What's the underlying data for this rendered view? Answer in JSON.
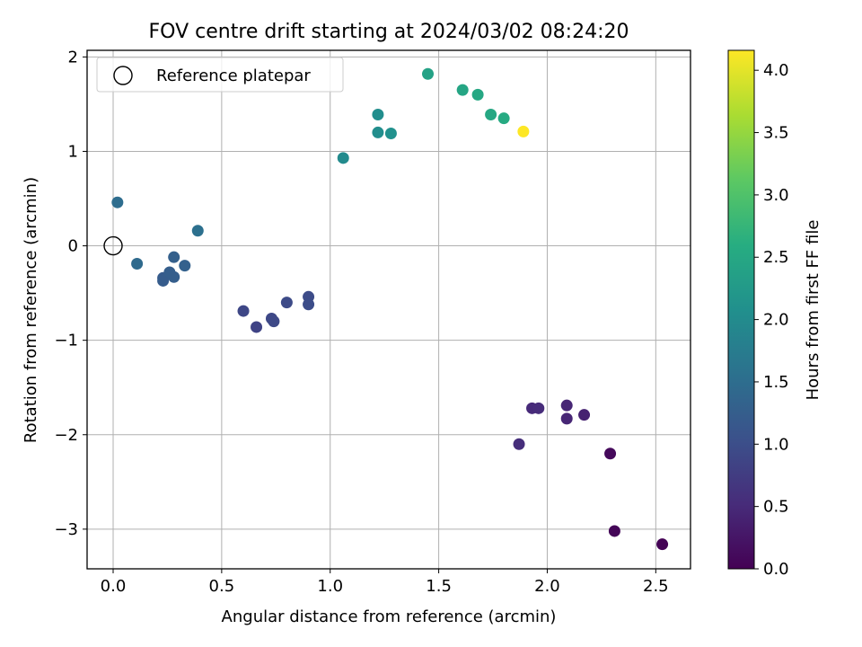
{
  "chart_data": {
    "type": "scatter",
    "title": "FOV centre drift starting at 2024/03/02 08:24:20",
    "xlabel": "Angular distance from reference (arcmin)",
    "ylabel": "Rotation from reference (arcmin)",
    "colorbar_label": "Hours from first FF file",
    "colormap": "viridis",
    "xlim": [
      -0.12,
      2.66
    ],
    "ylim": [
      -3.42,
      2.07
    ],
    "clim": [
      0.0,
      4.16
    ],
    "xticks": [
      "0.0",
      "0.5",
      "1.0",
      "1.5",
      "2.0",
      "2.5"
    ],
    "yticks": [
      "−3",
      "−2",
      "−1",
      "0",
      "1",
      "2"
    ],
    "cticks": [
      "0.0",
      "0.5",
      "1.0",
      "1.5",
      "2.0",
      "2.5",
      "3.0",
      "3.5",
      "4.0"
    ],
    "grid": true,
    "legend": {
      "placement": "upper-left",
      "entries": [
        "Reference platepar"
      ]
    },
    "reference_point": {
      "x": 0.0,
      "y": 0.0
    },
    "points": [
      {
        "x": 2.53,
        "y": -3.16,
        "h": 0.02
      },
      {
        "x": 2.31,
        "y": -3.02,
        "h": 0.06
      },
      {
        "x": 2.29,
        "y": -2.2,
        "h": 0.1
      },
      {
        "x": 2.17,
        "y": -1.79,
        "h": 0.4
      },
      {
        "x": 2.09,
        "y": -1.69,
        "h": 0.45
      },
      {
        "x": 2.09,
        "y": -1.83,
        "h": 0.45
      },
      {
        "x": 1.93,
        "y": -1.72,
        "h": 0.5
      },
      {
        "x": 1.96,
        "y": -1.72,
        "h": 0.52
      },
      {
        "x": 1.87,
        "y": -2.1,
        "h": 0.55
      },
      {
        "x": 0.66,
        "y": -0.86,
        "h": 0.85
      },
      {
        "x": 0.6,
        "y": -0.69,
        "h": 0.9
      },
      {
        "x": 0.73,
        "y": -0.77,
        "h": 0.92
      },
      {
        "x": 0.74,
        "y": -0.8,
        "h": 0.93
      },
      {
        "x": 0.8,
        "y": -0.6,
        "h": 0.95
      },
      {
        "x": 0.9,
        "y": -0.54,
        "h": 0.97
      },
      {
        "x": 0.9,
        "y": -0.62,
        "h": 0.98
      },
      {
        "x": 0.23,
        "y": -0.34,
        "h": 1.2
      },
      {
        "x": 0.23,
        "y": -0.37,
        "h": 1.22
      },
      {
        "x": 0.26,
        "y": -0.28,
        "h": 1.25
      },
      {
        "x": 0.28,
        "y": -0.33,
        "h": 1.25
      },
      {
        "x": 0.28,
        "y": -0.12,
        "h": 1.28
      },
      {
        "x": 0.33,
        "y": -0.21,
        "h": 1.3
      },
      {
        "x": 0.11,
        "y": -0.19,
        "h": 1.45
      },
      {
        "x": 0.02,
        "y": 0.46,
        "h": 1.5
      },
      {
        "x": 0.39,
        "y": 0.16,
        "h": 1.55
      },
      {
        "x": 1.06,
        "y": 0.93,
        "h": 2.0
      },
      {
        "x": 1.22,
        "y": 1.39,
        "h": 2.05
      },
      {
        "x": 1.22,
        "y": 1.2,
        "h": 2.05
      },
      {
        "x": 1.28,
        "y": 1.19,
        "h": 2.1
      },
      {
        "x": 1.45,
        "y": 1.82,
        "h": 2.4
      },
      {
        "x": 1.61,
        "y": 1.65,
        "h": 2.45
      },
      {
        "x": 1.68,
        "y": 1.6,
        "h": 2.5
      },
      {
        "x": 1.74,
        "y": 1.39,
        "h": 2.5
      },
      {
        "x": 1.8,
        "y": 1.35,
        "h": 2.55
      },
      {
        "x": 1.89,
        "y": 1.21,
        "h": 4.16
      }
    ]
  }
}
